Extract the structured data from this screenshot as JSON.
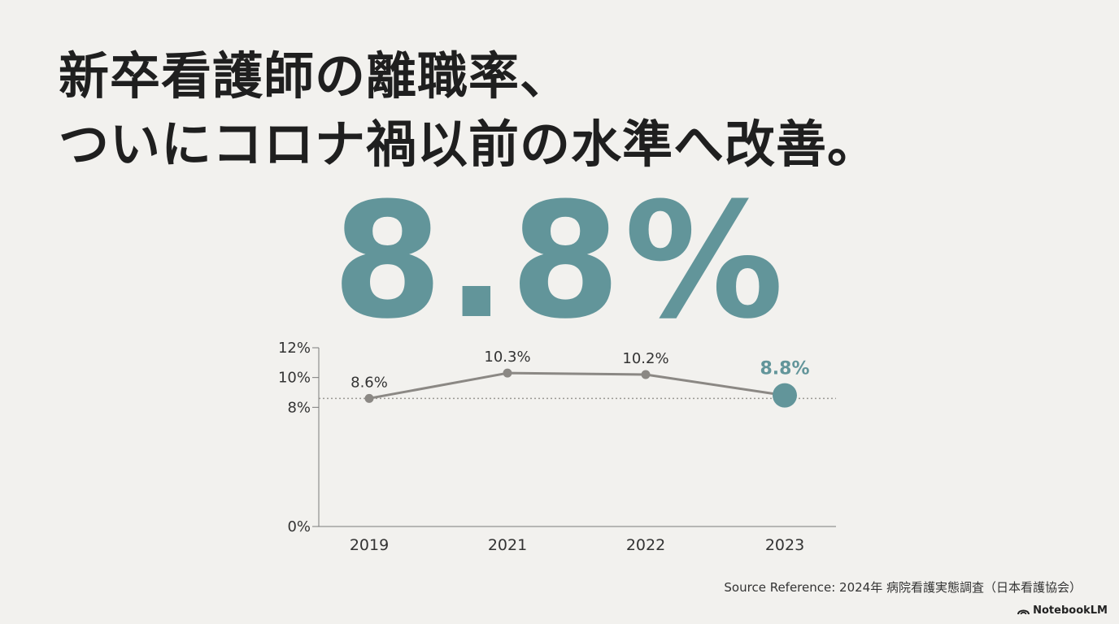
{
  "headline": {
    "line1": "新卒看護師の離職率、",
    "line2": "ついにコロナ禍以前の水準へ改善。"
  },
  "big_stat": "8.8%",
  "chart_data": {
    "type": "line",
    "categories": [
      "2019",
      "2021",
      "2022",
      "2023"
    ],
    "values": [
      8.6,
      10.3,
      10.2,
      8.8
    ],
    "data_labels": [
      "8.6%",
      "10.3%",
      "10.2%",
      "8.8%"
    ],
    "highlight_index": 3,
    "yticks": [
      {
        "value": 0,
        "label": "0%"
      },
      {
        "value": 8,
        "label": "8%"
      },
      {
        "value": 10,
        "label": "10%"
      },
      {
        "value": 12,
        "label": "12%"
      }
    ],
    "reference_line": 8.6,
    "ylim": [
      0,
      12
    ],
    "colors": {
      "line": "#8b8884",
      "point": "#8b8884",
      "highlight": "#62959a",
      "axis": "#7a7a7a",
      "reference": "#9a9894"
    }
  },
  "footer": {
    "source": "Source Reference: 2024年 病院看護実態調査（日本看護協会）",
    "brand": "NotebookLM",
    "brand_icon": "notebooklm-logo-icon"
  }
}
